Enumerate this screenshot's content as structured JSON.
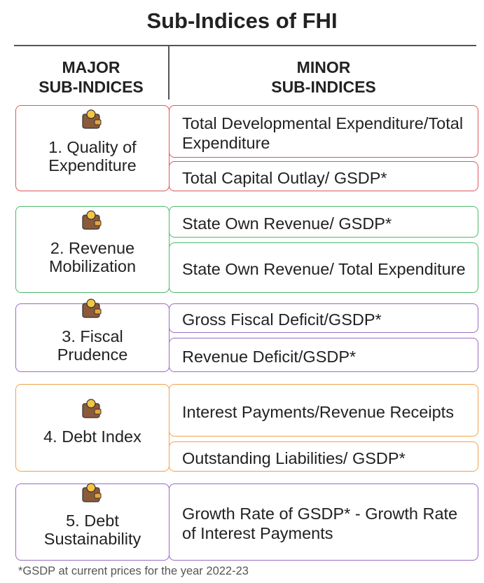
{
  "title": "Sub-Indices of FHI",
  "headers": {
    "major": [
      "MAJOR",
      "SUB-INDICES"
    ],
    "minor": [
      "MINOR",
      "SUB-INDICES"
    ]
  },
  "groups": [
    {
      "label_lines": [
        "1. Quality of",
        "Expenditure"
      ],
      "color": "#e2545c",
      "minors": [
        "Total Developmental Expenditure/Total Expenditure",
        "Total Capital Outlay/ GSDP*"
      ]
    },
    {
      "label_lines": [
        "2. Revenue",
        "Mobilization"
      ],
      "color": "#4cb96a",
      "minors": [
        "State Own Revenue/ GSDP*",
        "State Own Revenue/ Total Expenditure"
      ]
    },
    {
      "label_lines": [
        "3. Fiscal",
        "Prudence"
      ],
      "color": "#9b6bc4",
      "minors": [
        "Gross Fiscal Deficit/GSDP*",
        "Revenue Deficit/GSDP*"
      ]
    },
    {
      "label_lines": [
        "4. Debt Index"
      ],
      "color": "#f2a24a",
      "minors": [
        "Interest Payments/Revenue Receipts",
        "Outstanding Liabilities/ GSDP*"
      ]
    },
    {
      "label_lines": [
        "5. Debt",
        "Sustainability"
      ],
      "color": "#9b6bc4",
      "minors": [
        "Growth Rate of GSDP* - Growth Rate of Interest Payments"
      ]
    }
  ],
  "footnote": "*GSDP at current prices for the year 2022-23"
}
